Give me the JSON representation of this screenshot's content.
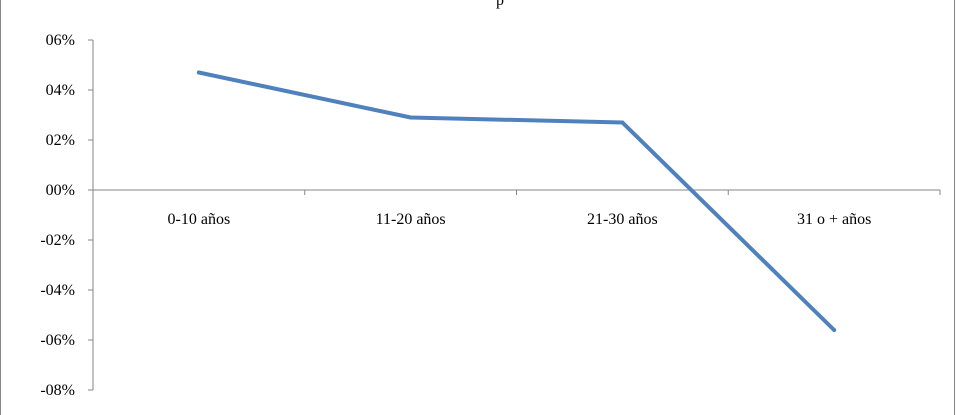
{
  "chart_data": {
    "type": "line",
    "title": "p",
    "xlabel": "",
    "ylabel": "",
    "categories": [
      "0-10 años",
      "11-20 años",
      "21-30 años",
      "31 o + años"
    ],
    "series": [
      {
        "values": [
          0.047,
          0.029,
          0.027,
          -0.056
        ],
        "color": "#4f81bd"
      }
    ],
    "ylim": [
      -0.08,
      0.06
    ],
    "yticks": [
      0.06,
      0.04,
      0.02,
      0.0,
      -0.02,
      -0.04,
      -0.06,
      -0.08
    ],
    "ytick_labels": [
      "06%",
      "04%",
      "02%",
      "00%",
      "-02%",
      "-04%",
      "-06%",
      "-08%"
    ],
    "grid": false,
    "legend": "none"
  }
}
